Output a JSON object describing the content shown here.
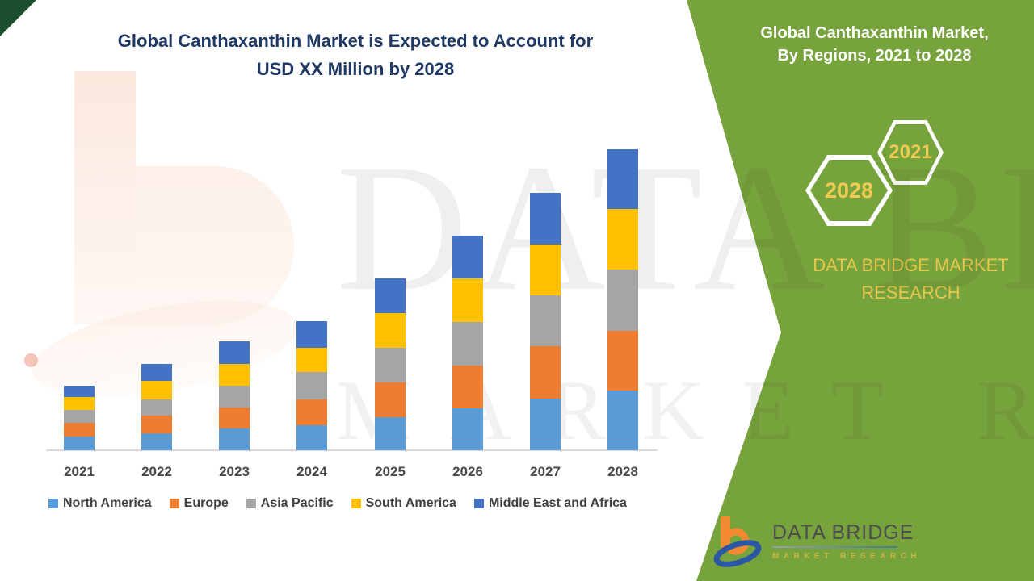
{
  "header": {
    "title_line1": "Global Canthaxanthin Market is Expected to Account for",
    "title_line2": "USD XX Million by 2028",
    "title_color": "#1F3864"
  },
  "side_panel": {
    "bg_color": "#77A33C",
    "title_line1": "Global Canthaxanthin Market,",
    "title_line2": "By Regions, 2021 to 2028",
    "hexagon_back_label": "2028",
    "hexagon_front_label": "2021",
    "hexagon_label_color": "#EFCB53",
    "brand_line1": "DATA BRIDGE MARKET",
    "brand_line2": "RESEARCH",
    "brand_color": "#E8C64E"
  },
  "watermark": {
    "line1": "DATA BRIDGE",
    "line2": "MARKET RESEARCH"
  },
  "footer_logo": {
    "name": "DATA BRIDGE",
    "tagline": "MARKET RESEARCH"
  },
  "chart_data": {
    "type": "bar",
    "stacked": true,
    "title": "Global Canthaxanthin Market is Expected to Account for USD XX Million by 2028",
    "categories": [
      "2021",
      "2022",
      "2023",
      "2024",
      "2025",
      "2026",
      "2027",
      "2028"
    ],
    "series": [
      {
        "name": "North America",
        "color": "#5B9BD5",
        "values": [
          17,
          21,
          27,
          31,
          41,
          52,
          64,
          74
        ]
      },
      {
        "name": "Europe",
        "color": "#ED7D31",
        "values": [
          17,
          22,
          26,
          32,
          43,
          53,
          65,
          74
        ]
      },
      {
        "name": "Asia Pacific",
        "color": "#A5A5A5",
        "values": [
          16,
          20,
          27,
          34,
          43,
          54,
          63,
          76
        ]
      },
      {
        "name": "South America",
        "color": "#FFC000",
        "values": [
          16,
          23,
          27,
          30,
          43,
          54,
          63,
          75
        ]
      },
      {
        "name": "Middle East and Africa",
        "color": "#4472C4",
        "values": [
          14,
          21,
          28,
          33,
          43,
          53,
          64,
          74
        ]
      }
    ],
    "xlabel": "",
    "ylabel": "",
    "units_note": "Relative height units; actual market values are masked as USD XX Million",
    "value_axis_visible": false,
    "grid": false,
    "legend_position": "bottom"
  }
}
